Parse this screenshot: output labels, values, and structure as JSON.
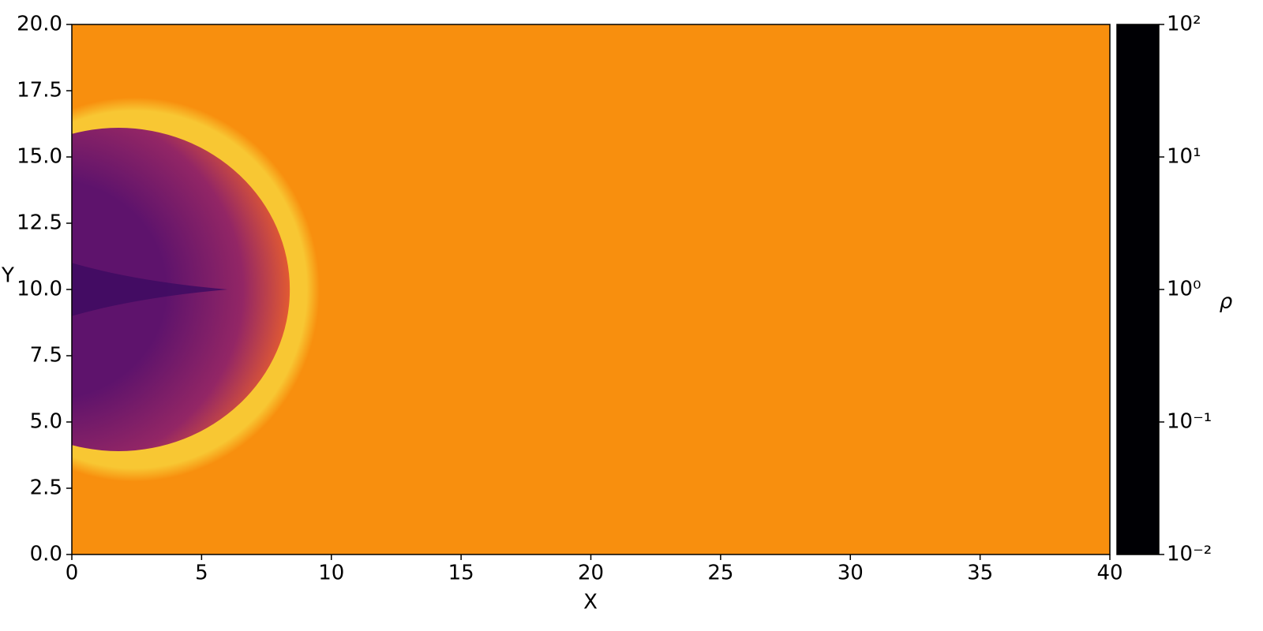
{
  "chart_data": {
    "type": "heatmap",
    "xlabel": "X",
    "ylabel": "Y",
    "colorbar_label": "ρ",
    "xlim": [
      0,
      40
    ],
    "xticks": [
      0,
      5,
      10,
      15,
      20,
      25,
      30,
      35,
      40
    ],
    "ylim": [
      0,
      20
    ],
    "yticks": [
      {
        "value": 0,
        "label": "0.0"
      },
      2.5,
      {
        "value": 5,
        "label": "5.0"
      },
      7.5,
      {
        "value": 10,
        "label": "10.0"
      },
      12.5,
      {
        "value": 15,
        "label": "15.0"
      },
      17.5,
      {
        "value": 20,
        "label": "20.0"
      }
    ],
    "clim": [
      0.01,
      100
    ],
    "cticks": [
      {
        "value": 0.01,
        "label": "10⁻²"
      },
      {
        "value": 0.1,
        "label": "10⁻¹"
      },
      {
        "value": 1,
        "label": "10⁰"
      },
      {
        "value": 10,
        "label": "10¹"
      },
      {
        "value": 100,
        "label": "10²"
      }
    ],
    "color_scale": "log",
    "colormap": [
      "#000004",
      "#1b0c41",
      "#4a0c6b",
      "#781c6d",
      "#a52c60",
      "#cf4446",
      "#ed6925",
      "#fb9b06",
      "#f7d13d",
      "#fcffa4"
    ],
    "regions": {
      "ambient": 10,
      "shell": 30,
      "cavity_edge": 3,
      "cavity_mid": 0.4,
      "cavity_core": 0.12,
      "jet": 0.06
    }
  }
}
